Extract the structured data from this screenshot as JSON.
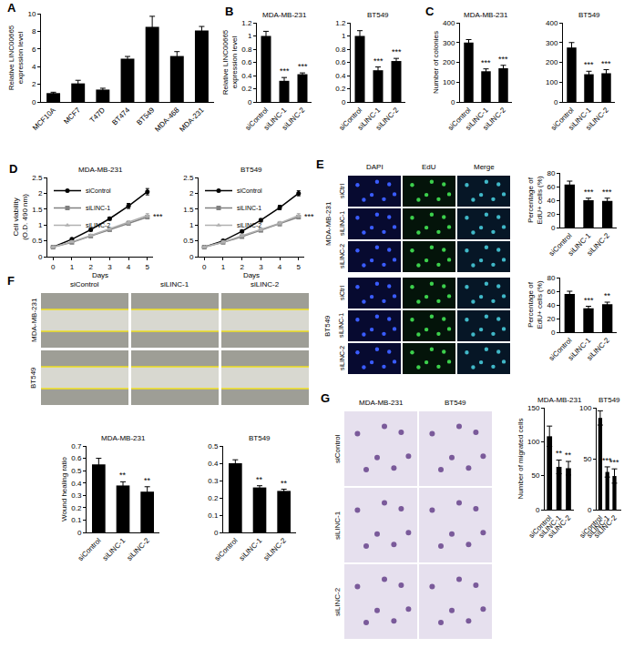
{
  "chart_data": [
    {
      "panel": "A",
      "type": "bar",
      "categories": [
        "MCF10A",
        "MCF7",
        "T47D",
        "BT474",
        "BT549",
        "MDA-468",
        "MDA-231"
      ],
      "values": [
        1,
        2.1,
        1.4,
        4.9,
        8.5,
        5.2,
        8.1
      ],
      "errors": [
        0.1,
        0.35,
        0.15,
        0.25,
        1.2,
        0.5,
        0.45
      ],
      "color": "#000000",
      "ylabel": "Relative LINC00665\nexpression level",
      "ylim": [
        0,
        10
      ],
      "yticks": [
        0,
        2,
        4,
        6,
        8,
        10
      ]
    },
    {
      "panel": "B",
      "type": "bar",
      "title": "MDA-MB-231",
      "categories": [
        "siControl",
        "siLINC-1",
        "siLINC-2"
      ],
      "values": [
        1,
        0.32,
        0.42
      ],
      "errors": [
        0.07,
        0.05,
        0.02
      ],
      "annotations": [
        null,
        "***",
        "***"
      ],
      "color": "#000000",
      "ylabel": "Relative LINC00665\nexpression level",
      "ylim": [
        0,
        1.2
      ],
      "yticks": [
        0,
        0.2,
        0.4,
        0.6,
        0.8,
        1,
        1.2
      ]
    },
    {
      "type": "bar",
      "title": "BT549",
      "categories": [
        "siControl",
        "siLINC-1",
        "siLINC-2"
      ],
      "values": [
        1,
        0.48,
        0.62
      ],
      "errors": [
        0.08,
        0.05,
        0.04
      ],
      "annotations": [
        null,
        "***",
        "***"
      ],
      "color": "#000000",
      "ylim": [
        0,
        1.2
      ],
      "yticks": [
        0,
        0.2,
        0.4,
        0.6,
        0.8,
        1,
        1.2
      ]
    },
    {
      "panel": "C",
      "type": "bar",
      "title": "MDA-MB-231",
      "categories": [
        "siControl",
        "siLINC-1",
        "siLINC-2"
      ],
      "values": [
        300,
        155,
        170
      ],
      "errors": [
        15,
        12,
        15
      ],
      "annotations": [
        null,
        "***",
        "***"
      ],
      "color": "#000000",
      "ylabel": "Number of colonies",
      "ylim": [
        0,
        400
      ],
      "yticks": [
        0,
        100,
        200,
        300,
        400
      ]
    },
    {
      "type": "bar",
      "title": "BT549",
      "categories": [
        "siControl",
        "siLINC-1",
        "siLINC-2"
      ],
      "values": [
        275,
        140,
        145
      ],
      "errors": [
        25,
        15,
        18
      ],
      "annotations": [
        null,
        "***",
        "***"
      ],
      "color": "#000000",
      "ylim": [
        0,
        400
      ],
      "yticks": [
        0,
        100,
        200,
        300,
        400
      ]
    },
    {
      "panel": "D",
      "type": "line",
      "title": "MDA-MB-231",
      "x": [
        0,
        1,
        2,
        3,
        4,
        5
      ],
      "xlabel": "Days",
      "ylabel": "Cell viability\n(O.D. 490 nm)",
      "xlim": [
        -0.3,
        5.3
      ],
      "xticks": [
        0,
        1,
        2,
        3,
        4,
        5
      ],
      "ylim": [
        0,
        2.5
      ],
      "yticks": [
        0,
        0.5,
        1,
        1.5,
        2,
        2.5
      ],
      "legend": "top-left",
      "annotations": [
        "***"
      ],
      "series": [
        {
          "name": "siControl",
          "color": "#000000",
          "marker": "circle",
          "values": [
            0.3,
            0.55,
            0.85,
            1.2,
            1.6,
            2.05
          ],
          "errors": [
            0.02,
            0.03,
            0.04,
            0.05,
            0.08,
            0.1
          ]
        },
        {
          "name": "siLINC-1",
          "color": "#808080",
          "marker": "square",
          "values": [
            0.3,
            0.45,
            0.65,
            0.85,
            1.05,
            1.25
          ],
          "errors": [
            0.02,
            0.03,
            0.03,
            0.04,
            0.05,
            0.06
          ]
        },
        {
          "name": "siLINC-2",
          "color": "#b0b0b0",
          "marker": "triangle-up",
          "values": [
            0.3,
            0.47,
            0.67,
            0.88,
            1.08,
            1.3
          ],
          "errors": [
            0.02,
            0.03,
            0.03,
            0.04,
            0.05,
            0.06
          ]
        }
      ]
    },
    {
      "type": "line",
      "title": "BT549",
      "x": [
        0,
        1,
        2,
        3,
        4,
        5
      ],
      "xlabel": "Days",
      "xlim": [
        -0.3,
        5.3
      ],
      "xticks": [
        0,
        1,
        2,
        3,
        4,
        5
      ],
      "ylim": [
        0,
        2.5
      ],
      "yticks": [
        0,
        0.5,
        1,
        1.5,
        2,
        2.5
      ],
      "legend": "top-left",
      "annotations": [
        "***"
      ],
      "series": [
        {
          "name": "siControl",
          "color": "#000000",
          "marker": "circle",
          "values": [
            0.3,
            0.5,
            0.8,
            1.15,
            1.55,
            2.0
          ],
          "errors": [
            0.02,
            0.03,
            0.04,
            0.05,
            0.07,
            0.08
          ]
        },
        {
          "name": "siLINC-1",
          "color": "#808080",
          "marker": "square",
          "values": [
            0.3,
            0.45,
            0.63,
            0.83,
            1.03,
            1.25
          ],
          "errors": [
            0.02,
            0.03,
            0.03,
            0.04,
            0.05,
            0.06
          ]
        },
        {
          "name": "siLINC-2",
          "color": "#b0b0b0",
          "marker": "triangle-up",
          "values": [
            0.3,
            0.46,
            0.66,
            0.86,
            1.06,
            1.3
          ],
          "errors": [
            0.02,
            0.03,
            0.03,
            0.04,
            0.05,
            0.06
          ]
        }
      ]
    },
    {
      "type": "bar",
      "categories": [
        "siControl",
        "siLINC-1",
        "siLINC-2"
      ],
      "values": [
        63,
        40,
        39
      ],
      "errors": [
        5,
        3,
        4
      ],
      "annotations": [
        null,
        "***",
        "***"
      ],
      "color": "#000000",
      "ylabel": "Percentage of\nEdU+ cells (%)",
      "ylim": [
        0,
        80
      ],
      "yticks": [
        0,
        20,
        40,
        60,
        80
      ]
    },
    {
      "type": "bar",
      "categories": [
        "siControl",
        "siLINC-1",
        "siLINC-2"
      ],
      "values": [
        56,
        35,
        41
      ],
      "errors": [
        4,
        3,
        3
      ],
      "annotations": [
        null,
        "***",
        "**"
      ],
      "color": "#000000",
      "ylabel": "Percentage of\nEdU+ cells (%)",
      "ylim": [
        0,
        80
      ],
      "yticks": [
        0,
        20,
        40,
        60,
        80
      ]
    },
    {
      "type": "bar",
      "title": "MDA-MB-231",
      "categories": [
        "siControl",
        "siLINC-1",
        "siLINC-2"
      ],
      "values": [
        0.55,
        0.38,
        0.33
      ],
      "errors": [
        0.05,
        0.03,
        0.04
      ],
      "annotations": [
        null,
        "**",
        "**"
      ],
      "color": "#000000",
      "ylabel": "Wound healing ratio",
      "ylim": [
        0,
        0.7
      ],
      "yticks": [
        0,
        0.1,
        0.2,
        0.3,
        0.4,
        0.5,
        0.6,
        0.7
      ]
    },
    {
      "type": "bar",
      "title": "BT549",
      "categories": [
        "siControl",
        "siLINC-1",
        "siLINC-2"
      ],
      "values": [
        0.4,
        0.26,
        0.24
      ],
      "errors": [
        0.02,
        0.01,
        0.01
      ],
      "annotations": [
        null,
        "**",
        "**"
      ],
      "color": "#000000",
      "ylim": [
        0,
        0.5
      ],
      "yticks": [
        0,
        0.1,
        0.2,
        0.3,
        0.4,
        0.5
      ]
    },
    {
      "type": "bar",
      "title": "MDA-MB-231",
      "categories": [
        "siControl",
        "siLINC-1",
        "siLINC-2"
      ],
      "values": [
        108,
        63,
        61
      ],
      "errors": [
        15,
        10,
        10
      ],
      "annotations": [
        null,
        "**",
        "**"
      ],
      "color": "#000000",
      "ylabel": "Number of migrated cells",
      "ylim": [
        0,
        150
      ],
      "yticks": [
        0,
        50,
        100,
        150
      ]
    },
    {
      "type": "bar",
      "title": "BT549",
      "categories": [
        "siControl",
        "siLINC-1",
        "siLINC-2"
      ],
      "values": [
        90,
        37,
        33
      ],
      "errors": [
        7,
        5,
        7
      ],
      "annotations": [
        null,
        "***",
        "***"
      ],
      "color": "#000000",
      "ylim": [
        0,
        100
      ],
      "yticks": [
        0,
        50,
        100
      ]
    }
  ],
  "image_panels": [
    {
      "panel": "E",
      "column_labels": [
        "DAPI",
        "EdU",
        "Merge"
      ],
      "groups": [
        {
          "name": "MDA-MB-231",
          "rows": [
            "siCtrl",
            "siLINC-1",
            "siLINC-2"
          ]
        },
        {
          "name": "BT549",
          "rows": [
            "siCtrl",
            "siLINC-1",
            "siLINC-2"
          ]
        }
      ]
    },
    {
      "panel": "F",
      "column_labels": [
        "siControl",
        "siLINC-1",
        "siLINC-2"
      ],
      "row_labels": [
        "MDA-MB-231",
        "BT549"
      ]
    },
    {
      "panel": "G",
      "column_labels": [
        "MDA-MB-231",
        "BT549"
      ],
      "row_labels": [
        "siControl",
        "siLINC-1",
        "siLINC-2"
      ]
    }
  ]
}
